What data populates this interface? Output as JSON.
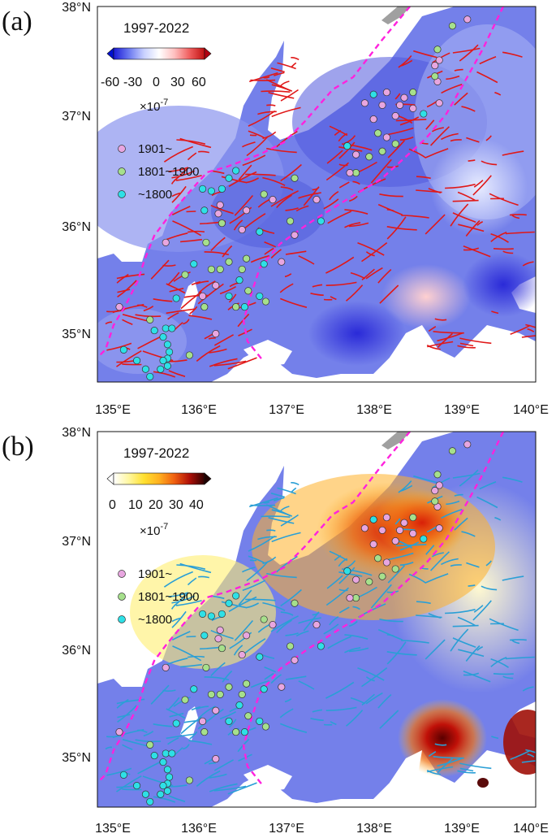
{
  "figure": {
    "colors": {
      "boundary": "#ff22dd",
      "fault_a": "#e01818",
      "fault_b": "#2a9fd6",
      "marker_1901": "#e8a6e0",
      "marker_1801": "#a6e08c",
      "marker_pre1800": "#2ee0e6",
      "land_a": "#6e78e8",
      "land_b": "#ffe94a"
    },
    "panels": [
      {
        "id": "a",
        "letter": "(a)",
        "colorbar": {
          "title": "1997-2022",
          "ticks": [
            "-60",
            "-30",
            "0",
            "30",
            "60"
          ],
          "unit": "×10",
          "unit_exp": "-7",
          "palette": [
            "#1a1ad6",
            "#6a78f0",
            "#c8d0ff",
            "#ffffff",
            "#ffc0c0",
            "#f06060",
            "#c01010"
          ]
        },
        "legend": [
          {
            "label": "1901~",
            "color_key": "marker_1901"
          },
          {
            "label": "1801~1900",
            "color_key": "marker_1801"
          },
          {
            "label": "~1800",
            "color_key": "marker_pre1800"
          }
        ]
      },
      {
        "id": "b",
        "letter": "(b)",
        "colorbar": {
          "title": "1997-2022",
          "ticks": [
            "0",
            "10",
            "20",
            "30",
            "40"
          ],
          "unit": "×10",
          "unit_exp": "-7",
          "palette": [
            "#ffffff",
            "#fff7a0",
            "#ffe030",
            "#ffb020",
            "#f06010",
            "#b01008",
            "#300000"
          ]
        },
        "legend": [
          {
            "label": "1901~",
            "color_key": "marker_1901"
          },
          {
            "label": "1801~1900",
            "color_key": "marker_1801"
          },
          {
            "label": "~1800",
            "color_key": "marker_pre1800"
          }
        ]
      }
    ],
    "axes": {
      "x_ticks": [
        "135°E",
        "136°E",
        "137°E",
        "138°E",
        "139°E",
        "140°E"
      ],
      "y_ticks": [
        "38°N",
        "37°N",
        "36°N",
        "35°N"
      ]
    }
  },
  "map_data": {
    "extent": {
      "lon": [
        135,
        140
      ],
      "lat": [
        34.5,
        38
      ]
    },
    "events": [
      {
        "lon": 139.22,
        "lat": 37.88,
        "era": "1901"
      },
      {
        "lon": 139.05,
        "lat": 37.82,
        "era": "1801"
      },
      {
        "lon": 138.88,
        "lat": 37.6,
        "era": "1801"
      },
      {
        "lon": 138.9,
        "lat": 37.5,
        "era": "1901"
      },
      {
        "lon": 138.85,
        "lat": 37.45,
        "era": "1901"
      },
      {
        "lon": 138.88,
        "lat": 37.3,
        "era": "1901"
      },
      {
        "lon": 138.6,
        "lat": 37.2,
        "era": "1801"
      },
      {
        "lon": 138.5,
        "lat": 37.15,
        "era": "1901"
      },
      {
        "lon": 138.3,
        "lat": 37.2,
        "era": "1901"
      },
      {
        "lon": 138.15,
        "lat": 37.18,
        "era": "pre1800"
      },
      {
        "lon": 138.25,
        "lat": 37.08,
        "era": "1901"
      },
      {
        "lon": 138.45,
        "lat": 37.08,
        "era": "1901"
      },
      {
        "lon": 138.6,
        "lat": 37.05,
        "era": "1901"
      },
      {
        "lon": 138.72,
        "lat": 37.0,
        "era": "pre1800"
      },
      {
        "lon": 138.4,
        "lat": 36.98,
        "era": "1901"
      },
      {
        "lon": 138.15,
        "lat": 36.95,
        "era": "1901"
      },
      {
        "lon": 138.05,
        "lat": 37.1,
        "era": "1901"
      },
      {
        "lon": 138.9,
        "lat": 37.1,
        "era": "1901"
      },
      {
        "lon": 138.2,
        "lat": 36.82,
        "era": "1801"
      },
      {
        "lon": 138.3,
        "lat": 36.78,
        "era": "1901"
      },
      {
        "lon": 138.4,
        "lat": 36.72,
        "era": "1801"
      },
      {
        "lon": 138.25,
        "lat": 36.65,
        "era": "1801"
      },
      {
        "lon": 138.1,
        "lat": 36.6,
        "era": "1801"
      },
      {
        "lon": 137.95,
        "lat": 36.62,
        "era": "1901"
      },
      {
        "lon": 137.85,
        "lat": 36.7,
        "era": "pre1800"
      },
      {
        "lon": 137.95,
        "lat": 36.45,
        "era": "1801"
      },
      {
        "lon": 137.88,
        "lat": 36.45,
        "era": "1901"
      },
      {
        "lon": 137.25,
        "lat": 36.4,
        "era": "1801"
      },
      {
        "lon": 136.9,
        "lat": 36.25,
        "era": "1801"
      },
      {
        "lon": 136.7,
        "lat": 36.1,
        "era": "1901"
      },
      {
        "lon": 137.0,
        "lat": 36.2,
        "era": "1901"
      },
      {
        "lon": 137.5,
        "lat": 36.2,
        "era": "1901"
      },
      {
        "lon": 137.55,
        "lat": 36.0,
        "era": "pre1800"
      },
      {
        "lon": 137.2,
        "lat": 36.0,
        "era": "1801"
      },
      {
        "lon": 136.85,
        "lat": 35.9,
        "era": "pre1800"
      },
      {
        "lon": 136.65,
        "lat": 35.92,
        "era": "1901"
      },
      {
        "lon": 137.25,
        "lat": 35.87,
        "era": "1901"
      },
      {
        "lon": 136.4,
        "lat": 36.15,
        "era": "1901"
      },
      {
        "lon": 136.38,
        "lat": 36.07,
        "era": "1901"
      },
      {
        "lon": 136.22,
        "lat": 36.1,
        "era": "pre1800"
      },
      {
        "lon": 136.42,
        "lat": 35.98,
        "era": "1801"
      },
      {
        "lon": 136.58,
        "lat": 36.47,
        "era": "pre1800"
      },
      {
        "lon": 136.5,
        "lat": 36.4,
        "era": "pre1800"
      },
      {
        "lon": 136.42,
        "lat": 36.3,
        "era": "pre1800"
      },
      {
        "lon": 136.3,
        "lat": 36.28,
        "era": "pre1800"
      },
      {
        "lon": 136.2,
        "lat": 36.3,
        "era": "pre1800"
      },
      {
        "lon": 136.24,
        "lat": 35.8,
        "era": "1801"
      },
      {
        "lon": 135.78,
        "lat": 35.8,
        "era": "1901"
      },
      {
        "lon": 136.7,
        "lat": 35.65,
        "era": "1801"
      },
      {
        "lon": 136.65,
        "lat": 35.55,
        "era": "1801"
      },
      {
        "lon": 136.9,
        "lat": 35.6,
        "era": "pre1800"
      },
      {
        "lon": 136.62,
        "lat": 35.45,
        "era": "pre1800"
      },
      {
        "lon": 136.72,
        "lat": 35.35,
        "era": "1801"
      },
      {
        "lon": 136.85,
        "lat": 35.3,
        "era": "pre1800"
      },
      {
        "lon": 136.92,
        "lat": 35.25,
        "era": "1801"
      },
      {
        "lon": 137.1,
        "lat": 35.62,
        "era": "1901"
      },
      {
        "lon": 136.5,
        "lat": 35.62,
        "era": "1801"
      },
      {
        "lon": 136.4,
        "lat": 35.55,
        "era": "1801"
      },
      {
        "lon": 136.3,
        "lat": 35.55,
        "era": "1801"
      },
      {
        "lon": 136.1,
        "lat": 35.6,
        "era": "pre1800"
      },
      {
        "lon": 136.35,
        "lat": 35.4,
        "era": "1901"
      },
      {
        "lon": 136.2,
        "lat": 35.3,
        "era": "1901"
      },
      {
        "lon": 136.5,
        "lat": 35.3,
        "era": "pre1800"
      },
      {
        "lon": 136.58,
        "lat": 35.2,
        "era": "1801"
      },
      {
        "lon": 136.68,
        "lat": 35.2,
        "era": "pre1800"
      },
      {
        "lon": 136.22,
        "lat": 35.2,
        "era": "1801"
      },
      {
        "lon": 135.9,
        "lat": 35.28,
        "era": "pre1800"
      },
      {
        "lon": 136.0,
        "lat": 35.5,
        "era": "1801"
      },
      {
        "lon": 135.25,
        "lat": 35.2,
        "era": "1901"
      },
      {
        "lon": 135.6,
        "lat": 35.08,
        "era": "1801"
      },
      {
        "lon": 135.65,
        "lat": 34.98,
        "era": "pre1800"
      },
      {
        "lon": 135.78,
        "lat": 35.0,
        "era": "pre1800"
      },
      {
        "lon": 135.85,
        "lat": 35.0,
        "era": "pre1800"
      },
      {
        "lon": 135.75,
        "lat": 34.92,
        "era": "pre1800"
      },
      {
        "lon": 135.8,
        "lat": 34.85,
        "era": "pre1800"
      },
      {
        "lon": 135.82,
        "lat": 34.78,
        "era": "pre1800"
      },
      {
        "lon": 135.8,
        "lat": 34.72,
        "era": "pre1800"
      },
      {
        "lon": 135.75,
        "lat": 34.7,
        "era": "pre1800"
      },
      {
        "lon": 135.8,
        "lat": 34.65,
        "era": "pre1800"
      },
      {
        "lon": 135.3,
        "lat": 34.8,
        "era": "pre1800"
      },
      {
        "lon": 135.45,
        "lat": 34.7,
        "era": "pre1800"
      },
      {
        "lon": 135.55,
        "lat": 34.62,
        "era": "pre1800"
      },
      {
        "lon": 135.72,
        "lat": 34.62,
        "era": "pre1800"
      },
      {
        "lon": 135.6,
        "lat": 34.55,
        "era": "pre1800"
      },
      {
        "lon": 136.35,
        "lat": 34.95,
        "era": "1901"
      },
      {
        "lon": 136.05,
        "lat": 34.75,
        "era": "1801"
      },
      {
        "lon": 138.85,
        "lat": 37.35,
        "era": "1801"
      }
    ]
  }
}
